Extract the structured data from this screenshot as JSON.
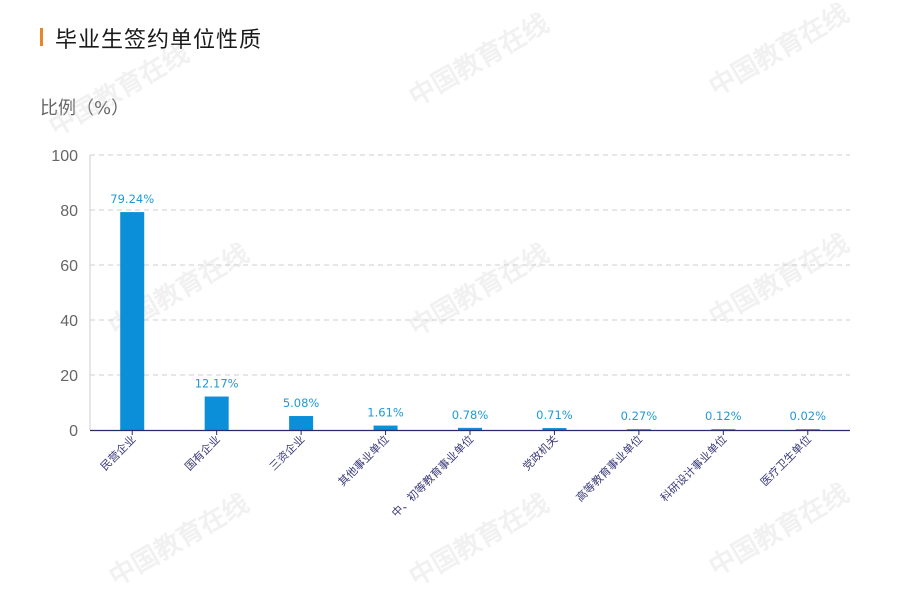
{
  "header": {
    "title": "毕业生签约单位性质",
    "accent_color": "#e8872a"
  },
  "axis": {
    "ylabel": "比例（%）"
  },
  "watermark_text": "中国教育在线",
  "chart_data": {
    "type": "bar",
    "title": "毕业生签约单位性质",
    "xlabel": "",
    "ylabel": "比例（%）",
    "ylim": [
      0,
      100
    ],
    "yticks": [
      0,
      20,
      40,
      60,
      80,
      100
    ],
    "grid": true,
    "bar_color": "#0a8fd8",
    "label_color": "#1e9ad6",
    "categories": [
      "民营企业",
      "国有企业",
      "三资企业",
      "其他事业单位",
      "中、初等教育事业单位",
      "党政机关",
      "高等教育事业单位",
      "科研设计事业单位",
      "医疗卫生单位"
    ],
    "values": [
      79.24,
      12.17,
      5.08,
      1.61,
      0.78,
      0.71,
      0.27,
      0.12,
      0.02
    ],
    "data_labels": [
      "79.24%",
      "12.17%",
      "5.08%",
      "1.61%",
      "0.78%",
      "0.71%",
      "0.27%",
      "0.12%",
      "0.02%"
    ]
  }
}
